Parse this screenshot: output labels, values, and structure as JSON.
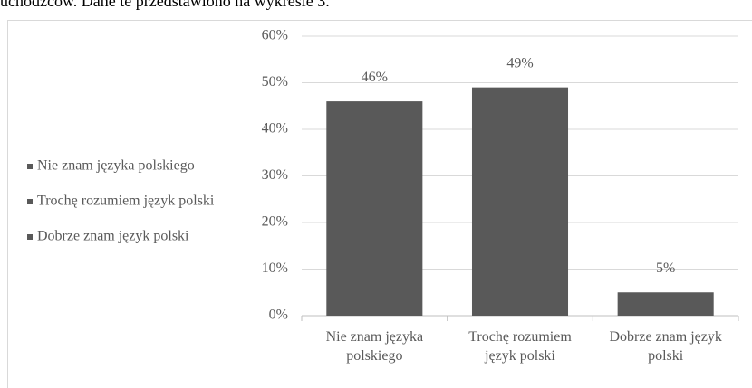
{
  "text_above": "uchodźców. Dane te przedstawiono na wykresie 3.",
  "chart_data": {
    "type": "bar",
    "categories": [
      "Nie znam języka polskiego",
      "Trochę rozumiem język polski",
      "Dobrze znam język polski"
    ],
    "values": [
      46,
      49,
      5
    ],
    "value_labels": [
      "46%",
      "49%",
      "5%"
    ],
    "color": "#595959",
    "ylim": [
      0,
      60
    ],
    "yticks": [
      {
        "value": 0,
        "label": "0%"
      },
      {
        "value": 10,
        "label": "10%"
      },
      {
        "value": 20,
        "label": "20%"
      },
      {
        "value": 30,
        "label": "30%"
      },
      {
        "value": 40,
        "label": "40%"
      },
      {
        "value": 50,
        "label": "50%"
      },
      {
        "value": 60,
        "label": "60%"
      }
    ],
    "grid": true,
    "legend": "left"
  }
}
